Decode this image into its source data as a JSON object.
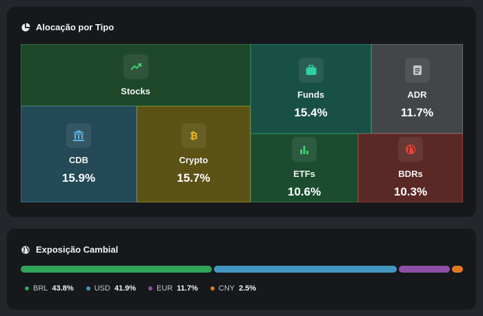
{
  "allocation": {
    "title": "Alocação por Tipo",
    "title_icon": "pie-chart-icon",
    "tiles": {
      "stocks": {
        "label": "Stocks",
        "pct": "",
        "icon": "trending-up-icon",
        "color": "#1f472a"
      },
      "cdb": {
        "label": "CDB",
        "pct": "15.9%",
        "icon": "bank-icon",
        "color": "#244957"
      },
      "crypto": {
        "label": "Crypto",
        "pct": "15.7%",
        "icon": "bitcoin-icon",
        "color": "#5c5215"
      },
      "funds": {
        "label": "Funds",
        "pct": "15.4%",
        "icon": "briefcase-icon",
        "color": "#195046"
      },
      "adr": {
        "label": "ADR",
        "pct": "11.7%",
        "icon": "document-icon",
        "color": "#434649"
      },
      "etfs": {
        "label": "ETFs",
        "pct": "10.6%",
        "icon": "bar-chart-icon",
        "color": "#1c4c30"
      },
      "bdrs": {
        "label": "BDRs",
        "pct": "10.3%",
        "icon": "globe-icon",
        "color": "#5a2926"
      }
    }
  },
  "exposure": {
    "title": "Exposição Cambial",
    "title_icon": "globe-icon",
    "currencies": [
      {
        "code": "BRL",
        "pct": "43.8%",
        "value": 43.8,
        "color": "#2ea35a"
      },
      {
        "code": "USD",
        "pct": "41.9%",
        "value": 41.9,
        "color": "#4296bf"
      },
      {
        "code": "EUR",
        "pct": "11.7%",
        "value": 11.7,
        "color": "#8e4fa8"
      },
      {
        "code": "CNY",
        "pct": "2.5%",
        "value": 2.5,
        "color": "#de7b22"
      }
    ]
  }
}
